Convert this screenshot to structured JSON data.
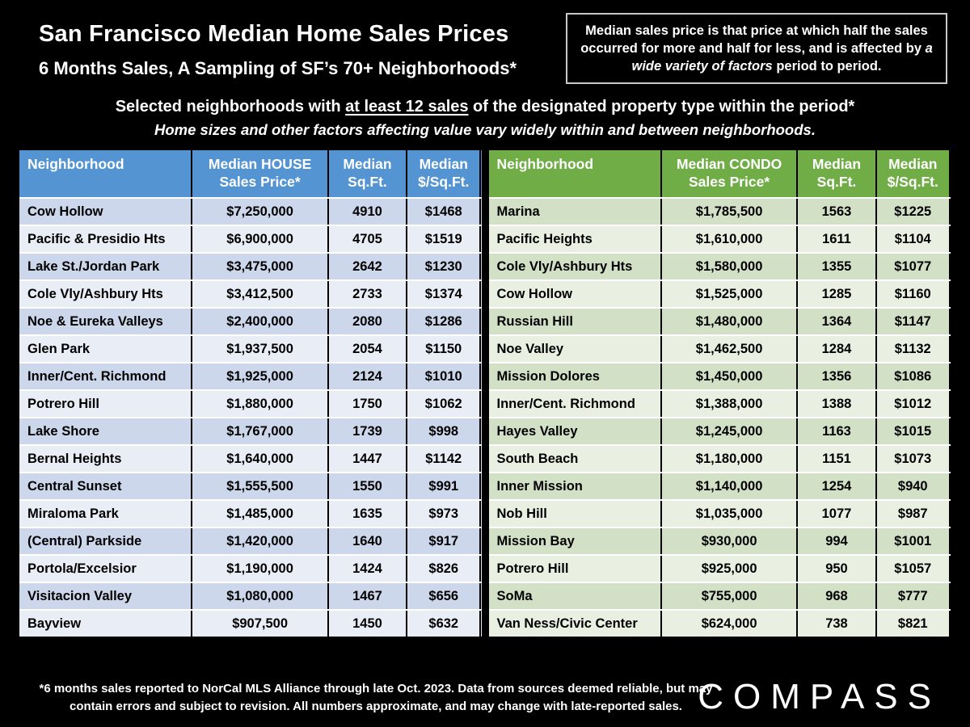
{
  "header": {
    "title": "San Francisco Median Home Sales Prices",
    "subtitle": "6 Months Sales, A Sampling of SF’s 70+ Neighborhoods*"
  },
  "note_box": {
    "text_pre": "Median sales price is that price at which half the sales occurred for more and half for less, and is affected by ",
    "text_italic": "a wide variety of factors",
    "text_post": " period to period."
  },
  "intro": {
    "selected_pre": "Selected neighborhoods with ",
    "selected_underline": "at least 12 sales",
    "selected_post": " of the designated property type within the period*",
    "variance_note": "Home sizes and other factors affecting value vary widely within and between neighborhoods."
  },
  "chart_data": [
    {
      "type": "table",
      "name": "house",
      "header_color": "#5494d2",
      "row_colors": [
        "#ccd7eb",
        "#e9edf6"
      ],
      "header": {
        "neighborhood": "Neighborhood",
        "price": [
          "Median HOUSE",
          "Sales Price*"
        ],
        "sqft": [
          "Median",
          "Sq.Ft."
        ],
        "ppsf": [
          "Median",
          "$/Sq.Ft."
        ]
      },
      "rows": [
        [
          "Cow Hollow",
          "$7,250,000",
          "4910",
          "$1468"
        ],
        [
          "Pacific & Presidio Hts",
          "$6,900,000",
          "4705",
          "$1519"
        ],
        [
          "Lake St./Jordan Park",
          "$3,475,000",
          "2642",
          "$1230"
        ],
        [
          "Cole Vly/Ashbury Hts",
          "$3,412,500",
          "2733",
          "$1374"
        ],
        [
          "Noe & Eureka Valleys",
          "$2,400,000",
          "2080",
          "$1286"
        ],
        [
          "Glen Park",
          "$1,937,500",
          "2054",
          "$1150"
        ],
        [
          "Inner/Cent. Richmond",
          "$1,925,000",
          "2124",
          "$1010"
        ],
        [
          "Potrero Hill",
          "$1,880,000",
          "1750",
          "$1062"
        ],
        [
          "Lake Shore",
          "$1,767,000",
          "1739",
          "$998"
        ],
        [
          "Bernal Heights",
          "$1,640,000",
          "1447",
          "$1142"
        ],
        [
          "Central Sunset",
          "$1,555,500",
          "1550",
          "$991"
        ],
        [
          "Miraloma Park",
          "$1,485,000",
          "1635",
          "$973"
        ],
        [
          "(Central) Parkside",
          "$1,420,000",
          "1640",
          "$917"
        ],
        [
          "Portola/Excelsior",
          "$1,190,000",
          "1424",
          "$826"
        ],
        [
          "Visitacion Valley",
          "$1,080,000",
          "1467",
          "$656"
        ],
        [
          "Bayview",
          "$907,500",
          "1450",
          "$632"
        ]
      ]
    },
    {
      "type": "table",
      "name": "condo",
      "header_color": "#70ad47",
      "row_colors": [
        "#d2e0c6",
        "#e9f0e2"
      ],
      "header": {
        "neighborhood": "Neighborhood",
        "price": [
          "Median CONDO",
          "Sales Price*"
        ],
        "sqft": [
          "Median",
          "Sq.Ft."
        ],
        "ppsf": [
          "Median",
          "$/Sq.Ft."
        ]
      },
      "rows": [
        [
          "Marina",
          "$1,785,500",
          "1563",
          "$1225"
        ],
        [
          "Pacific Heights",
          "$1,610,000",
          "1611",
          "$1104"
        ],
        [
          "Cole Vly/Ashbury Hts",
          "$1,580,000",
          "1355",
          "$1077"
        ],
        [
          "Cow Hollow",
          "$1,525,000",
          "1285",
          "$1160"
        ],
        [
          "Russian Hill",
          "$1,480,000",
          "1364",
          "$1147"
        ],
        [
          "Noe Valley",
          "$1,462,500",
          "1284",
          "$1132"
        ],
        [
          "Mission Dolores",
          "$1,450,000",
          "1356",
          "$1086"
        ],
        [
          "Inner/Cent. Richmond",
          "$1,388,000",
          "1388",
          "$1012"
        ],
        [
          "Hayes Valley",
          "$1,245,000",
          "1163",
          "$1015"
        ],
        [
          "South Beach",
          "$1,180,000",
          "1151",
          "$1073"
        ],
        [
          "Inner Mission",
          "$1,140,000",
          "1254",
          "$940"
        ],
        [
          "Nob Hill",
          "$1,035,000",
          "1077",
          "$987"
        ],
        [
          "Mission Bay",
          "$930,000",
          "994",
          "$1001"
        ],
        [
          "Potrero Hill",
          "$925,000",
          "950",
          "$1057"
        ],
        [
          "SoMa",
          "$755,000",
          "968",
          "$777"
        ],
        [
          "Van Ness/Civic Center",
          "$624,000",
          "738",
          "$821"
        ]
      ]
    }
  ],
  "footnote": "*6 months sales reported to NorCal MLS Alliance through late Oct. 2023. Data from sources deemed reliable, but may contain errors and subject to revision. All numbers approximate, and may change with late-reported sales.",
  "logo": "COMPASS"
}
